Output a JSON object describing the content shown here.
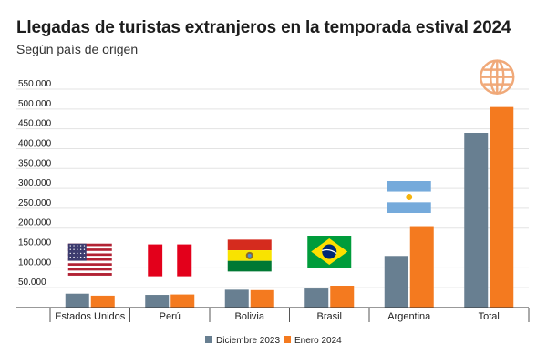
{
  "chart_data": {
    "type": "bar",
    "title": "Llegadas de turistas extranjeros en la temporada estival 2024",
    "subtitle": "Según país de origen",
    "ylim": [
      0,
      550000
    ],
    "yticks": [
      50000,
      100000,
      150000,
      200000,
      250000,
      300000,
      350000,
      400000,
      450000,
      500000,
      550000
    ],
    "ytick_labels": [
      "50.000",
      "100.000",
      "150.000",
      "200.000",
      "250.000",
      "300.000",
      "350.000",
      "400.000",
      "450.000",
      "500.000",
      "550.000"
    ],
    "categories": [
      "Estados Unidos",
      "Perú",
      "Bolivia",
      "Brasil",
      "Argentina",
      "Total"
    ],
    "category_icons": [
      "usa-flag-icon",
      "peru-flag-icon",
      "bolivia-flag-icon",
      "brazil-flag-icon",
      "argentina-flag-icon",
      "globe-icon"
    ],
    "series": [
      {
        "name": "Diciembre 2023",
        "color": "#687f91",
        "values": [
          35000,
          32000,
          45000,
          48000,
          130000,
          440000
        ]
      },
      {
        "name": "Enero 2024",
        "color": "#f47a1f",
        "values": [
          30000,
          33000,
          44000,
          55000,
          205000,
          505000
        ]
      }
    ],
    "grid": true,
    "legend_position": "bottom-center"
  }
}
